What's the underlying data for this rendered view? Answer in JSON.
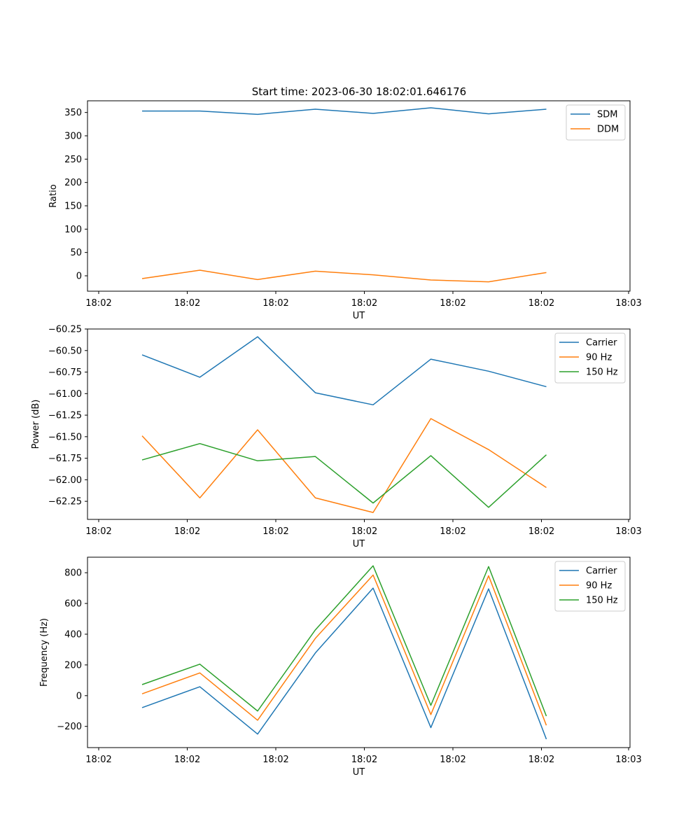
{
  "title": "Start time: 2023-06-30 18:02:01.646176",
  "colors": {
    "blue": "#1f77b4",
    "orange": "#ff7f0e",
    "green": "#2ca02c"
  },
  "chart_data": [
    {
      "type": "line",
      "xlabel": "UT",
      "ylabel": "Ratio",
      "x_tick_labels": [
        "18:02",
        "18:02",
        "18:02",
        "18:02",
        "18:02",
        "18:02",
        "18:03"
      ],
      "y_ticks": [
        0,
        50,
        100,
        150,
        200,
        250,
        300,
        350
      ],
      "ylim": [
        -33,
        375
      ],
      "legend_position": "top-right",
      "series": [
        {
          "name": "SDM",
          "color": "#1f77b4",
          "values": [
            353,
            353,
            346,
            357,
            348,
            360,
            347,
            357
          ]
        },
        {
          "name": "DDM",
          "color": "#ff7f0e",
          "values": [
            -6,
            12,
            -8,
            10,
            2,
            -9,
            -13,
            7
          ]
        }
      ]
    },
    {
      "type": "line",
      "xlabel": "UT",
      "ylabel": "Power (dB)",
      "x_tick_labels": [
        "18:02",
        "18:02",
        "18:02",
        "18:02",
        "18:02",
        "18:02",
        "18:03"
      ],
      "y_ticks": [
        -60.25,
        -60.5,
        -60.75,
        -61.0,
        -61.25,
        -61.5,
        -61.75,
        -62.0,
        -62.25
      ],
      "y_tick_labels": [
        "−60.25",
        "−60.50",
        "−60.75",
        "−61.00",
        "−61.25",
        "−61.50",
        "−61.75",
        "−62.00",
        "−62.25"
      ],
      "ylim": [
        -62.46,
        -60.25
      ],
      "legend_position": "top-right",
      "series": [
        {
          "name": "Carrier",
          "color": "#1f77b4",
          "values": [
            -60.55,
            -60.81,
            -60.34,
            -60.99,
            -61.13,
            -60.6,
            -60.74,
            -60.92
          ]
        },
        {
          "name": "90 Hz",
          "color": "#ff7f0e",
          "values": [
            -61.49,
            -62.21,
            -61.42,
            -62.21,
            -62.38,
            -61.29,
            -61.65,
            -62.09
          ]
        },
        {
          "name": "150 Hz",
          "color": "#2ca02c",
          "values": [
            -61.77,
            -61.58,
            -61.78,
            -61.73,
            -62.27,
            -61.72,
            -62.32,
            -61.71
          ]
        }
      ]
    },
    {
      "type": "line",
      "xlabel": "UT",
      "ylabel": "Frequency (Hz)",
      "x_tick_labels": [
        "18:02",
        "18:02",
        "18:02",
        "18:02",
        "18:02",
        "18:02",
        "18:03"
      ],
      "y_ticks": [
        -200,
        0,
        200,
        400,
        600,
        800
      ],
      "y_tick_labels": [
        "−200",
        "0",
        "200",
        "400",
        "600",
        "800"
      ],
      "ylim": [
        -338,
        901
      ],
      "legend_position": "top-right",
      "series": [
        {
          "name": "Carrier",
          "color": "#1f77b4",
          "values": [
            -78,
            58,
            -250,
            278,
            700,
            -208,
            695,
            -283
          ]
        },
        {
          "name": "90 Hz",
          "color": "#ff7f0e",
          "values": [
            12,
            148,
            -160,
            373,
            785,
            -123,
            780,
            -193
          ]
        },
        {
          "name": "150 Hz",
          "color": "#2ca02c",
          "values": [
            72,
            205,
            -100,
            428,
            845,
            -63,
            840,
            -133
          ]
        }
      ]
    }
  ]
}
